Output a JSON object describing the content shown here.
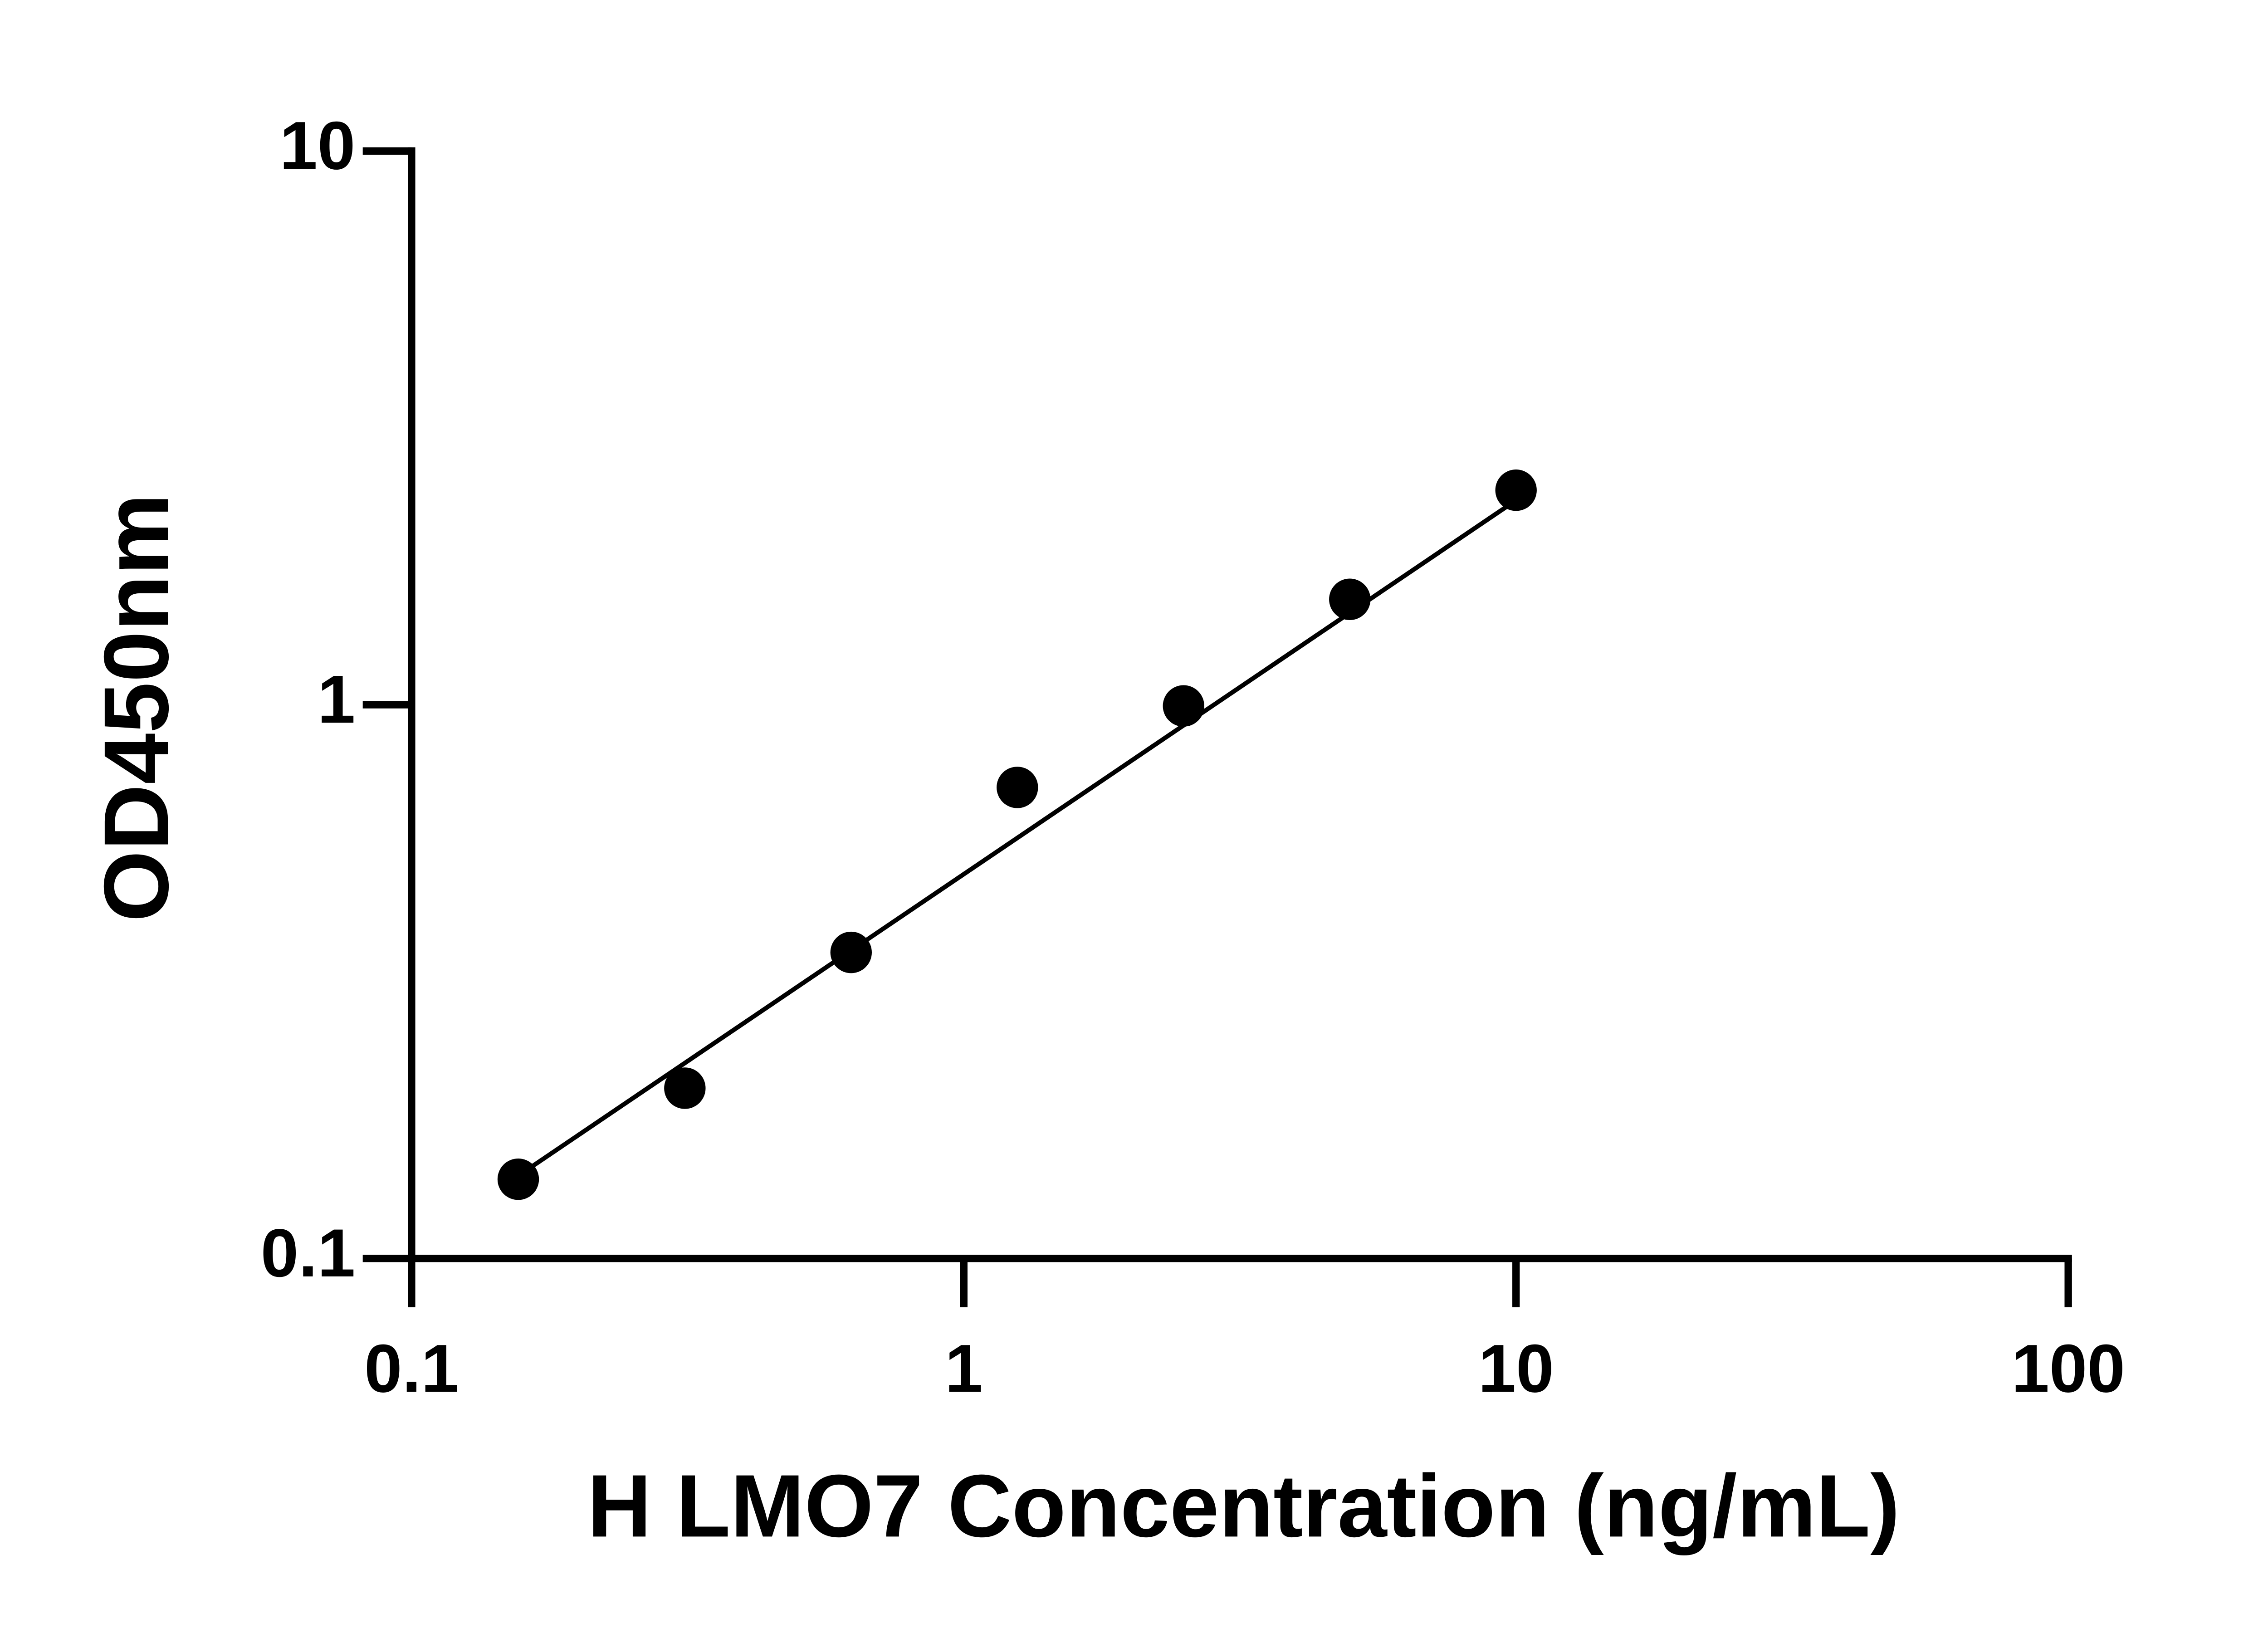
{
  "chart_data": {
    "type": "scatter",
    "x_label": "H LMO7 Concentration (ng/mL)",
    "y_label": "OD450nm",
    "x_scale": "log",
    "y_scale": "log",
    "xlim": [
      0.1,
      100
    ],
    "ylim": [
      0.1,
      10
    ],
    "xticks": [
      0.1,
      1,
      10,
      100
    ],
    "yticks": [
      0.1,
      1,
      10
    ],
    "series": [
      {
        "color": "#000000",
        "x": [
          0.156,
          0.3125,
          0.625,
          1.25,
          2.5,
          5,
          10
        ],
        "values": [
          0.139,
          0.203,
          0.357,
          0.709,
          0.995,
          1.55,
          2.44
        ]
      }
    ],
    "fit_line": {
      "color": "#000000",
      "x": [
        0.156,
        10
      ],
      "values": [
        0.141,
        2.34
      ]
    }
  }
}
